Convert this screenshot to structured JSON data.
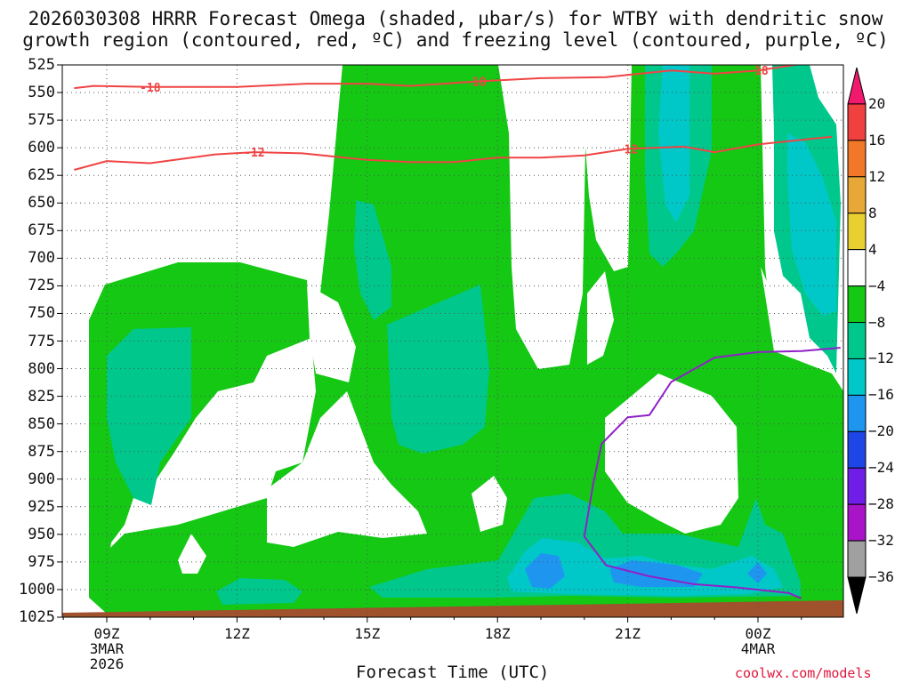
{
  "title_line1": "2026030308 HRRR Forecast Omega (shaded, µbar/s) for WTBY with dendritic snow",
  "title_line2": "growth region (contoured, red, ºC) and freezing level (contoured, purple, ºC)",
  "chart_data": {
    "type": "heatmap",
    "xlabel": "Forecast Time (UTC)",
    "ylabel": "",
    "y_axis": "pressure (hPa), inverted",
    "ylim": [
      1025,
      525
    ],
    "y_ticks": [
      525,
      550,
      575,
      600,
      625,
      650,
      675,
      700,
      725,
      750,
      775,
      800,
      825,
      850,
      875,
      900,
      925,
      950,
      975,
      1000,
      1025
    ],
    "x_ticks": [
      {
        "label": "09Z",
        "sub1": "3MAR",
        "sub2": "2026"
      },
      {
        "label": "12Z",
        "sub1": "",
        "sub2": ""
      },
      {
        "label": "15Z",
        "sub1": "",
        "sub2": ""
      },
      {
        "label": "18Z",
        "sub1": "",
        "sub2": ""
      },
      {
        "label": "21Z",
        "sub1": "",
        "sub2": ""
      },
      {
        "label": "00Z",
        "sub1": "4MAR",
        "sub2": ""
      }
    ],
    "grid": true,
    "colorbar": {
      "placement": "right",
      "labels": [
        "20",
        "16",
        "12",
        "8",
        "4",
        "−4",
        "−8",
        "−12",
        "−16",
        "−20",
        "−24",
        "−28",
        "−32",
        "−36"
      ],
      "colors": [
        "#f0196e",
        "#f04040",
        "#f07828",
        "#e8a838",
        "#e8d030",
        "#ffffff",
        "#14c814",
        "#00c88c",
        "#00c8c8",
        "#1e96f0",
        "#1e46e6",
        "#6e1ee6",
        "#aa14c8",
        "#a0a0a0",
        "#000000"
      ]
    },
    "series": [
      {
        "contour": "dendritic_top",
        "color": "#f04444",
        "labels": [
          "-18",
          "-18",
          "-18"
        ],
        "points": [
          [
            8.25,
            546
          ],
          [
            8.7,
            544
          ],
          [
            10,
            545
          ],
          [
            12,
            545
          ],
          [
            13.6,
            542
          ],
          [
            15,
            542
          ],
          [
            16,
            544
          ],
          [
            17.5,
            540
          ],
          [
            19,
            537
          ],
          [
            20.5,
            536
          ],
          [
            22,
            530
          ],
          [
            23,
            533
          ],
          [
            24,
            530
          ],
          [
            25,
            524
          ],
          [
            25.7,
            524
          ]
        ]
      },
      {
        "contour": "dendritic_bottom",
        "color": "#f04444",
        "labels": [
          "-12",
          "-12"
        ],
        "points": [
          [
            8.25,
            620
          ],
          [
            9,
            612
          ],
          [
            10,
            614
          ],
          [
            11.5,
            606
          ],
          [
            12.4,
            604
          ],
          [
            13.5,
            605
          ],
          [
            15,
            611
          ],
          [
            16,
            613
          ],
          [
            17,
            613
          ],
          [
            18,
            609
          ],
          [
            19,
            609
          ],
          [
            20,
            607
          ],
          [
            21,
            601
          ],
          [
            22.3,
            599
          ],
          [
            23,
            604
          ],
          [
            24,
            597
          ],
          [
            25.7,
            590
          ]
        ]
      },
      {
        "contour": "freezing_level",
        "color": "#9020c8",
        "labels": [],
        "points": [
          [
            25.9,
            781
          ],
          [
            25,
            784
          ],
          [
            24,
            785
          ],
          [
            23,
            790
          ],
          [
            22,
            812
          ],
          [
            21.5,
            842
          ],
          [
            21,
            844
          ],
          [
            20.4,
            868
          ],
          [
            20.2,
            905
          ],
          [
            20,
            952
          ],
          [
            20.5,
            978
          ],
          [
            21.5,
            988
          ],
          [
            22.5,
            995
          ],
          [
            23.5,
            998
          ],
          [
            24.7,
            1003
          ],
          [
            25.0,
            1008
          ]
        ]
      }
    ],
    "annotations": [
      "3MAR",
      "2026",
      "4MAR"
    ]
  },
  "credit": "coolwx.com/models"
}
